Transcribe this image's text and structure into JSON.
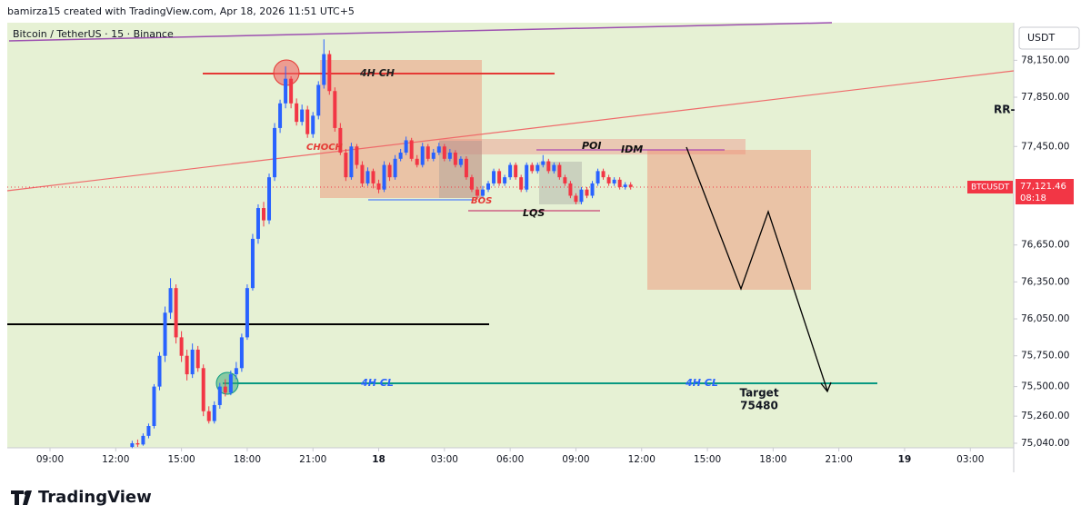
{
  "header": {
    "text": "bamirza15 created with TradingView.com, Apr 18, 2026 11:51 UTC+5"
  },
  "footer": {
    "brand": "TradingView"
  },
  "chart_data": {
    "type": "candlestick",
    "title": "Bitcoin / TetherUS · 15 · Binance",
    "currency": "USDT",
    "symbol": "BTCUSDT",
    "price_label": "77,121.46",
    "countdown": "08:18",
    "up_color": "#2962ff",
    "down_color": "#f23645",
    "annotations": {
      "ch": "4H  CH",
      "choch": "CHOCH",
      "poi": "POI",
      "idm": "IDM",
      "bos": "BOS",
      "lqs": "LQS",
      "cl1": "4H  CL",
      "cl2": "4H  CL",
      "target": "Target",
      "target_value": "75480",
      "rr": "RR-"
    },
    "xlim": [
      7.05,
      52.98
    ],
    "xticks": [
      {
        "value": 9,
        "label": "09:00"
      },
      {
        "value": 12,
        "label": "12:00"
      },
      {
        "value": 15,
        "label": "15:00"
      },
      {
        "value": 18,
        "label": "18:00"
      },
      {
        "value": 21,
        "label": "21:00"
      },
      {
        "value": 24,
        "label": "18"
      },
      {
        "value": 27,
        "label": "03:00"
      },
      {
        "value": 30,
        "label": "06:00"
      },
      {
        "value": 33,
        "label": "09:00"
      },
      {
        "value": 36,
        "label": "12:00"
      },
      {
        "value": 39,
        "label": "15:00"
      },
      {
        "value": 42,
        "label": "18:00"
      },
      {
        "value": 45,
        "label": "21:00"
      },
      {
        "value": 48,
        "label": "19"
      },
      {
        "value": 51,
        "label": "03:00"
      }
    ],
    "ylim": [
      75003,
      78455
    ],
    "yticks": [
      {
        "value": 78150,
        "label": "78,150.00"
      },
      {
        "value": 77850,
        "label": "77,850.00"
      },
      {
        "value": 77450,
        "label": "77,450.00"
      },
      {
        "value": 76650,
        "label": "76,650.00"
      },
      {
        "value": 76350,
        "label": "76,350.00"
      },
      {
        "value": 76050,
        "label": "76,050.00"
      },
      {
        "value": 75750,
        "label": "75,750.00"
      },
      {
        "value": 75500,
        "label": "75,500.00"
      },
      {
        "value": 75260,
        "label": "75,260.00"
      },
      {
        "value": 75040,
        "label": "75,040.00"
      }
    ],
    "x": [
      12.75,
      13,
      13.25,
      13.5,
      13.75,
      14,
      14.25,
      14.5,
      14.75,
      15,
      15.25,
      15.5,
      15.75,
      16,
      16.25,
      16.5,
      16.75,
      17,
      17.25,
      17.5,
      17.75,
      18,
      18.25,
      18.5,
      18.75,
      19,
      19.25,
      19.5,
      19.75,
      20,
      20.25,
      20.5,
      20.75,
      21,
      21.25,
      21.5,
      21.75,
      22,
      22.25,
      22.5,
      22.75,
      23,
      23.25,
      23.5,
      23.75,
      24,
      24.25,
      24.5,
      24.75,
      25,
      25.25,
      25.5,
      25.75,
      26,
      26.25,
      26.5,
      26.75,
      27,
      27.25,
      27.5,
      27.75,
      28,
      28.25,
      28.5,
      28.75,
      29,
      29.25,
      29.5,
      29.75,
      30,
      30.25,
      30.5,
      30.75,
      31,
      31.25,
      31.5,
      31.75,
      32,
      32.25,
      32.5,
      32.75,
      33,
      33.25,
      33.5,
      33.75,
      34,
      34.25,
      34.5,
      34.75,
      35,
      35.25,
      35.5
    ],
    "candles": [
      [
        75010,
        75060,
        75000,
        75040
      ],
      [
        75040,
        75070,
        75010,
        75030
      ],
      [
        75030,
        75120,
        75020,
        75100
      ],
      [
        75100,
        75200,
        75080,
        75180
      ],
      [
        75180,
        75520,
        75160,
        75500
      ],
      [
        75500,
        75780,
        75470,
        75750
      ],
      [
        75750,
        76150,
        75700,
        76100
      ],
      [
        76100,
        76380,
        76050,
        76300
      ],
      [
        76300,
        76330,
        75850,
        75900
      ],
      [
        75900,
        75950,
        75700,
        75750
      ],
      [
        75750,
        75800,
        75550,
        75600
      ],
      [
        75600,
        75850,
        75570,
        75800
      ],
      [
        75800,
        75830,
        75620,
        75650
      ],
      [
        75650,
        75680,
        75260,
        75300
      ],
      [
        75300,
        75340,
        75200,
        75220
      ],
      [
        75220,
        75380,
        75200,
        75350
      ],
      [
        75350,
        75530,
        75320,
        75500
      ],
      [
        75500,
        75560,
        75420,
        75450
      ],
      [
        75450,
        75630,
        75430,
        75600
      ],
      [
        75600,
        75700,
        75560,
        75650
      ],
      [
        75650,
        75930,
        75620,
        75900
      ],
      [
        75900,
        76330,
        75880,
        76300
      ],
      [
        76300,
        76740,
        76280,
        76700
      ],
      [
        76700,
        76980,
        76660,
        76950
      ],
      [
        76950,
        77000,
        76800,
        76850
      ],
      [
        76850,
        77230,
        76820,
        77200
      ],
      [
        77200,
        77640,
        77170,
        77600
      ],
      [
        77600,
        77830,
        77560,
        77800
      ],
      [
        77800,
        78100,
        77760,
        78000
      ],
      [
        78000,
        78020,
        77760,
        77800
      ],
      [
        77800,
        77840,
        77620,
        77650
      ],
      [
        77650,
        77790,
        77620,
        77750
      ],
      [
        77750,
        77780,
        77520,
        77550
      ],
      [
        77550,
        77730,
        77520,
        77700
      ],
      [
        77700,
        77980,
        77670,
        77950
      ],
      [
        77950,
        78320,
        77920,
        78200
      ],
      [
        78200,
        78230,
        77870,
        77900
      ],
      [
        77900,
        77930,
        77570,
        77600
      ],
      [
        77600,
        77640,
        77380,
        77400
      ],
      [
        77400,
        77430,
        77170,
        77200
      ],
      [
        77200,
        77480,
        77180,
        77450
      ],
      [
        77450,
        77470,
        77270,
        77300
      ],
      [
        77300,
        77330,
        77120,
        77150
      ],
      [
        77150,
        77280,
        77130,
        77250
      ],
      [
        77250,
        77270,
        77110,
        77150
      ],
      [
        77150,
        77180,
        77070,
        77100
      ],
      [
        77100,
        77330,
        77080,
        77300
      ],
      [
        77300,
        77320,
        77170,
        77200
      ],
      [
        77200,
        77380,
        77180,
        77350
      ],
      [
        77350,
        77430,
        77330,
        77400
      ],
      [
        77400,
        77530,
        77380,
        77500
      ],
      [
        77500,
        77520,
        77330,
        77350
      ],
      [
        77350,
        77380,
        77280,
        77300
      ],
      [
        77300,
        77480,
        77280,
        77450
      ],
      [
        77450,
        77470,
        77330,
        77350
      ],
      [
        77350,
        77430,
        77330,
        77400
      ],
      [
        77400,
        77480,
        77380,
        77450
      ],
      [
        77450,
        77470,
        77330,
        77350
      ],
      [
        77350,
        77430,
        77330,
        77400
      ],
      [
        77400,
        77420,
        77280,
        77300
      ],
      [
        77300,
        77370,
        77280,
        77350
      ],
      [
        77350,
        77370,
        77180,
        77200
      ],
      [
        77200,
        77220,
        77080,
        77100
      ],
      [
        77100,
        77120,
        77020,
        77050
      ],
      [
        77050,
        77130,
        77030,
        77100
      ],
      [
        77100,
        77170,
        77080,
        77150
      ],
      [
        77150,
        77270,
        77130,
        77250
      ],
      [
        77250,
        77270,
        77130,
        77150
      ],
      [
        77150,
        77220,
        77130,
        77200
      ],
      [
        77200,
        77320,
        77180,
        77300
      ],
      [
        77300,
        77320,
        77180,
        77200
      ],
      [
        77200,
        77220,
        77080,
        77100
      ],
      [
        77100,
        77320,
        77080,
        77300
      ],
      [
        77300,
        77320,
        77230,
        77250
      ],
      [
        77250,
        77320,
        77230,
        77300
      ],
      [
        77300,
        77380,
        77280,
        77330
      ],
      [
        77330,
        77350,
        77230,
        77250
      ],
      [
        77250,
        77320,
        77230,
        77300
      ],
      [
        77300,
        77320,
        77180,
        77200
      ],
      [
        77200,
        77220,
        77130,
        77150
      ],
      [
        77150,
        77170,
        77030,
        77050
      ],
      [
        77050,
        77070,
        76980,
        77000
      ],
      [
        77000,
        77120,
        76980,
        77100
      ],
      [
        77100,
        77120,
        77030,
        77050
      ],
      [
        77050,
        77170,
        77030,
        77150
      ],
      [
        77150,
        77270,
        77130,
        77250
      ],
      [
        77250,
        77270,
        77180,
        77200
      ],
      [
        77200,
        77220,
        77130,
        77150
      ],
      [
        77150,
        77200,
        77130,
        77180
      ],
      [
        77180,
        77200,
        77100,
        77120
      ],
      [
        77120,
        77160,
        77100,
        77140
      ],
      [
        77140,
        77160,
        77100,
        77121.46
      ]
    ]
  }
}
